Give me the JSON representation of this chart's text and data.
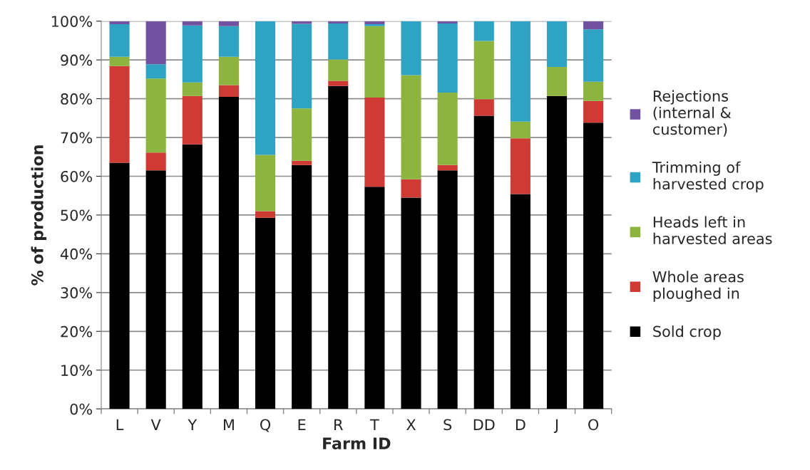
{
  "chart_data": {
    "type": "bar",
    "stacked": true,
    "xlabel": "Farm ID",
    "ylabel": "% of production",
    "categories": [
      "L",
      "V",
      "Y",
      "M",
      "Q",
      "E",
      "R",
      "T",
      "X",
      "S",
      "DD",
      "D",
      "J",
      "O"
    ],
    "series": [
      {
        "name": "Sold crop",
        "color": "#000000",
        "values": [
          63.5,
          61.5,
          68.2,
          80.5,
          49.3,
          62.9,
          83.3,
          57.3,
          54.5,
          61.5,
          75.6,
          55.4,
          80.7,
          73.8
        ]
      },
      {
        "name": "Whole areas ploughed in",
        "color": "#d03a35",
        "values": [
          24.9,
          4.6,
          12.5,
          3.0,
          1.7,
          1.1,
          1.3,
          23.0,
          4.7,
          1.4,
          4.3,
          14.4,
          0,
          5.6
        ]
      },
      {
        "name": "Heads left in harvested areas",
        "color": "#8db43e",
        "values": [
          2.4,
          19.1,
          3.5,
          7.3,
          14.5,
          13.5,
          5.5,
          18.4,
          26.9,
          18.7,
          15.0,
          4.3,
          7.5,
          5.0
        ]
      },
      {
        "name": "Trimming of harvested crop",
        "color": "#2ea3c4",
        "values": [
          8.4,
          3.7,
          14.7,
          7.9,
          34.5,
          21.8,
          9.3,
          0.5,
          13.9,
          17.8,
          5.1,
          25.9,
          11.8,
          13.5
        ]
      },
      {
        "name": "Rejections (internal & customer)",
        "color": "#7152a0",
        "values": [
          0.8,
          11.1,
          1.1,
          1.3,
          0,
          0.7,
          0.6,
          0.8,
          null,
          0.6,
          0,
          0,
          null,
          2.1
        ]
      }
    ],
    "ylim": [
      0,
      100
    ],
    "yticks": [
      {
        "value": 0,
        "label": "0%"
      },
      {
        "value": 10,
        "label": "10%"
      },
      {
        "value": 20,
        "label": "20%"
      },
      {
        "value": 30,
        "label": "30%"
      },
      {
        "value": 40,
        "label": "40%"
      },
      {
        "value": 50,
        "label": "50%"
      },
      {
        "value": 60,
        "label": "60%"
      },
      {
        "value": 70,
        "label": "70%"
      },
      {
        "value": 80,
        "label": "80%"
      },
      {
        "value": 90,
        "label": "90%"
      },
      {
        "value": 100,
        "label": "100%"
      }
    ],
    "grid": "y",
    "legend": "right"
  }
}
